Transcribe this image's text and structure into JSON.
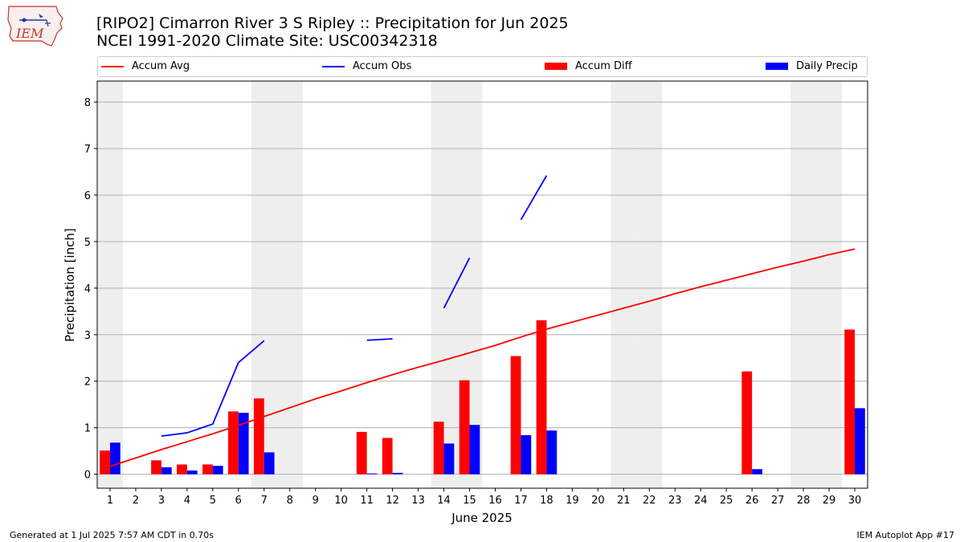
{
  "header": {
    "title_line1": "[RIPO2] Cimarron River 3 S Ripley :: Precipitation for Jun 2025",
    "title_line2": "NCEI 1991-2020 Climate Site: USC00342318"
  },
  "logo": {
    "text": "IEM",
    "icon": "iowa-state-logo-icon"
  },
  "footer": {
    "generated": "Generated at 1 Jul 2025 7:57 AM CDT in 0.70s",
    "app": "IEM Autoplot App #17"
  },
  "colors": {
    "avg": "#ff0000",
    "obs": "#0000ff",
    "diff": "#ff0000",
    "daily": "#0000ff",
    "weekend": "#eeeeee",
    "grid": "#b0b0b0"
  },
  "chart_data": {
    "type": "bar",
    "title": "[RIPO2] Cimarron River 3 S Ripley :: Precipitation for Jun 2025",
    "subtitle": "NCEI 1991-2020 Climate Site: USC00342318",
    "xlabel": "June 2025",
    "ylabel": "Precipitation [inch]",
    "xlim": [
      0.5,
      30.5
    ],
    "ylim": [
      -0.3,
      8.45
    ],
    "yticks": [
      0,
      1,
      2,
      3,
      4,
      5,
      6,
      7,
      8
    ],
    "categories": [
      1,
      2,
      3,
      4,
      5,
      6,
      7,
      8,
      9,
      10,
      11,
      12,
      13,
      14,
      15,
      16,
      17,
      18,
      19,
      20,
      21,
      22,
      23,
      24,
      25,
      26,
      27,
      28,
      29,
      30
    ],
    "weekend_days": [
      1,
      7,
      8,
      14,
      15,
      21,
      22,
      28,
      29
    ],
    "grid": "horizontal",
    "legend_position": "top",
    "legend": [
      "Accum Avg",
      "Accum Obs",
      "Accum Diff",
      "Daily Precip"
    ],
    "series": [
      {
        "name": "Accum Avg",
        "kind": "line",
        "values": [
          0.17,
          0.35,
          0.53,
          0.7,
          0.87,
          1.05,
          1.24,
          1.43,
          1.62,
          1.79,
          1.97,
          2.14,
          2.3,
          2.45,
          2.61,
          2.77,
          2.95,
          3.12,
          3.27,
          3.42,
          3.57,
          3.72,
          3.88,
          4.03,
          4.17,
          4.31,
          4.45,
          4.58,
          4.72,
          4.84
        ]
      },
      {
        "name": "Accum Obs",
        "kind": "line",
        "values": [
          null,
          null,
          0.82,
          0.89,
          1.08,
          2.4,
          2.87,
          null,
          null,
          null,
          2.88,
          2.91,
          null,
          3.57,
          4.65,
          null,
          5.47,
          6.42,
          null,
          null,
          null,
          null,
          null,
          null,
          null,
          null,
          null,
          null,
          null,
          null
        ]
      },
      {
        "name": "Accum Diff",
        "kind": "bar",
        "values": [
          0.51,
          0,
          0.3,
          0.21,
          0.21,
          1.35,
          1.63,
          0,
          0,
          0,
          0.91,
          0.78,
          0,
          1.13,
          2.02,
          0,
          2.54,
          3.31,
          0,
          0,
          0,
          0,
          0,
          0,
          0,
          2.21,
          0,
          0,
          0,
          3.11
        ]
      },
      {
        "name": "Daily Precip",
        "kind": "bar",
        "values": [
          0.68,
          0,
          0.15,
          0.08,
          0.18,
          1.32,
          0.47,
          0,
          0,
          0,
          0.01,
          0.03,
          0,
          0.66,
          1.06,
          0,
          0.84,
          0.94,
          0,
          0,
          0,
          0,
          0,
          0,
          0,
          0.11,
          0,
          0,
          0,
          1.42
        ]
      }
    ]
  }
}
